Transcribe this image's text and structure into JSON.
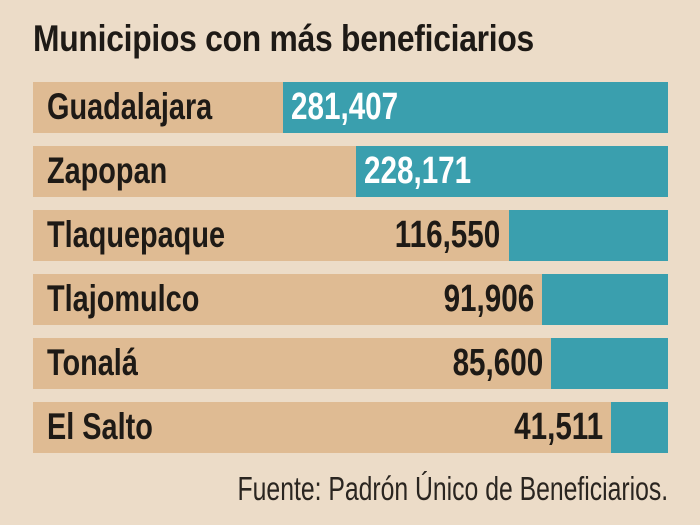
{
  "chart_data": {
    "type": "bar",
    "orientation": "horizontal",
    "title": "Municipios con más beneficiarios",
    "categories": [
      "Guadalajara",
      "Zapopan",
      "Tlaquepaque",
      "Tlajomulco",
      "Tonalá",
      "El Salto"
    ],
    "values": [
      281407,
      228171,
      116550,
      91906,
      85600,
      41511
    ],
    "value_labels": [
      "281,407",
      "228,171",
      "116,550",
      "91,906",
      "85,600",
      "41,511"
    ],
    "source": "Fuente: Padrón Único de Beneficiarios.",
    "colors": {
      "background": "#ecdcc8",
      "track": "#dfbb93",
      "bar": "#3a9fae"
    }
  }
}
